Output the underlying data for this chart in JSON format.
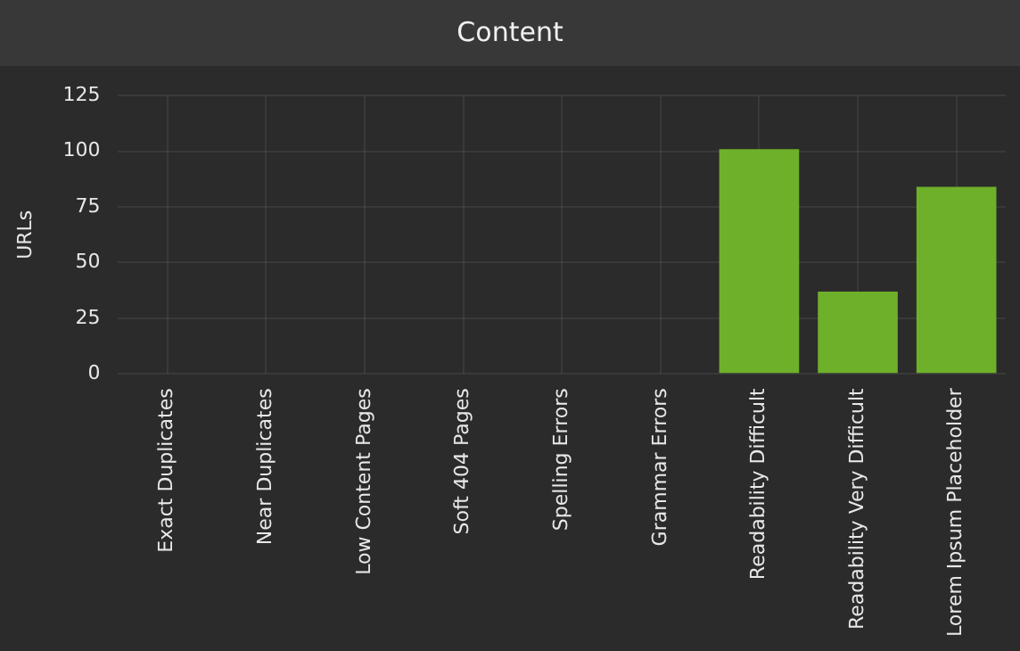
{
  "chart_data": {
    "type": "bar",
    "title": "Content",
    "ylabel": "URLs",
    "categories": [
      "Exact Duplicates",
      "Near Duplicates",
      "Low Content Pages",
      "Soft 404 Pages",
      "Spelling Errors",
      "Grammar Errors",
      "Readability Difficult",
      "Readability Very Difficult",
      "Lorem Ipsum Placeholder"
    ],
    "values": [
      0,
      0,
      0,
      0,
      0,
      0,
      101,
      37,
      84
    ],
    "color": "#6fb02a",
    "ylim": [
      0,
      125
    ],
    "yticks": [
      0,
      25,
      50,
      75,
      100,
      125
    ],
    "grid": true
  }
}
